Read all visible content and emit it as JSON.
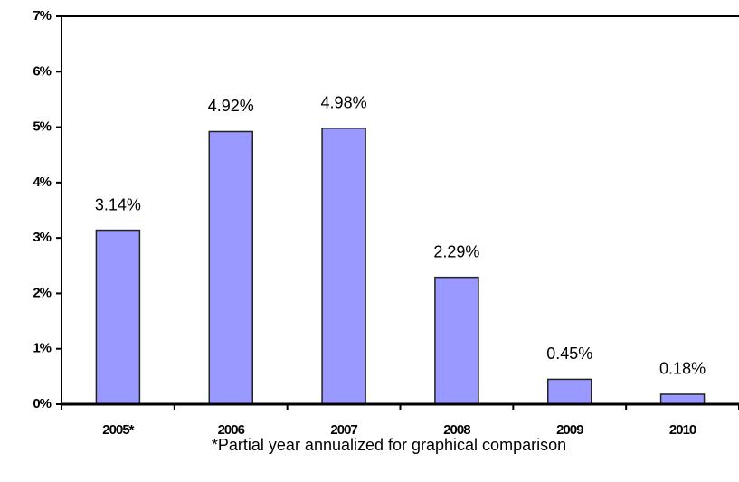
{
  "chart_data": {
    "type": "bar",
    "categories": [
      "2005*",
      "2006",
      "2007",
      "2008",
      "2009",
      "2010"
    ],
    "values": [
      3.14,
      4.92,
      4.98,
      2.29,
      0.45,
      0.18
    ],
    "value_labels": [
      "3.14%",
      "4.92%",
      "4.98%",
      "2.29%",
      "0.45%",
      "0.18%"
    ],
    "color": "#9999ff",
    "ylim": [
      0,
      7
    ],
    "yticks": [
      {
        "value": 0,
        "label": "0%"
      },
      {
        "value": 1,
        "label": "1%"
      },
      {
        "value": 2,
        "label": "2%"
      },
      {
        "value": 3,
        "label": "3%"
      },
      {
        "value": 4,
        "label": "4%"
      },
      {
        "value": 5,
        "label": "5%"
      },
      {
        "value": 6,
        "label": "6%"
      },
      {
        "value": 7,
        "label": "7%"
      }
    ],
    "grid": false,
    "annotations": [
      "*Partial year annualized for graphical comparison"
    ]
  }
}
